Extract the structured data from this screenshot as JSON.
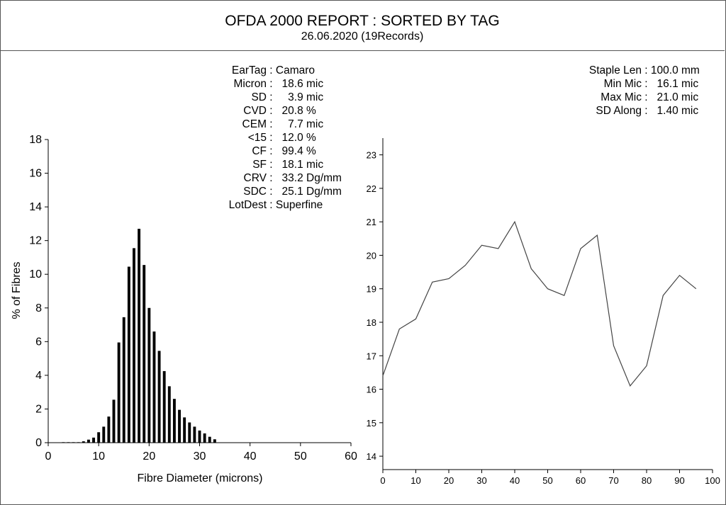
{
  "report": {
    "title": "OFDA 2000 REPORT : SORTED BY TAG",
    "subtitle": "26.06.2020 (19Records)"
  },
  "stats_left": [
    {
      "label": "EarTag",
      "value": "Camaro"
    },
    {
      "label": "Micron",
      "value": "  18.6 mic"
    },
    {
      "label": "SD",
      "value": "    3.9 mic"
    },
    {
      "label": "CVD",
      "value": "  20.8 %"
    },
    {
      "label": "CEM",
      "value": "    7.7 mic"
    },
    {
      "label": "<15",
      "value": "  12.0 %"
    },
    {
      "label": "CF",
      "value": "  99.4 %"
    },
    {
      "label": "SF",
      "value": "  18.1 mic"
    },
    {
      "label": "CRV",
      "value": "  33.2 Dg/mm"
    },
    {
      "label": "SDC",
      "value": "  25.1 Dg/mm"
    },
    {
      "label": "LotDest",
      "value": "Superfine"
    }
  ],
  "stats_right": [
    {
      "label": "Staple Len",
      "value": "100.0 mm"
    },
    {
      "label": "Min Mic",
      "value": "  16.1 mic"
    },
    {
      "label": "Max Mic",
      "value": "  21.0 mic"
    },
    {
      "label": "SD Along",
      "value": "  1.40 mic"
    }
  ],
  "chart_data": [
    {
      "type": "bar",
      "title": "",
      "xlabel": "Fibre Diameter (microns)",
      "ylabel": "% of Fibres",
      "xlim": [
        0,
        60
      ],
      "ylim": [
        0,
        18
      ],
      "x_ticks": [
        0,
        10,
        20,
        30,
        40,
        50,
        60
      ],
      "y_ticks": [
        0,
        2,
        4,
        6,
        8,
        10,
        12,
        14,
        16,
        18
      ],
      "x": [
        3,
        4,
        5,
        6,
        7,
        8,
        9,
        10,
        11,
        12,
        13,
        14,
        15,
        16,
        17,
        18,
        19,
        20,
        21,
        22,
        23,
        24,
        25,
        26,
        27,
        28,
        29,
        30,
        31,
        32,
        33
      ],
      "values": [
        0.03,
        0.03,
        0.03,
        0.03,
        0.08,
        0.18,
        0.3,
        0.62,
        0.95,
        1.55,
        2.55,
        5.95,
        7.45,
        10.45,
        11.55,
        12.7,
        10.55,
        8.0,
        6.6,
        5.45,
        4.25,
        3.35,
        2.6,
        1.95,
        1.5,
        1.2,
        0.95,
        0.72,
        0.55,
        0.35,
        0.2
      ]
    },
    {
      "type": "line",
      "title": "",
      "xlabel": "",
      "ylabel": "",
      "xlim": [
        0,
        100
      ],
      "ylim": [
        13.6,
        23.5
      ],
      "x_ticks": [
        0,
        10,
        20,
        30,
        40,
        50,
        60,
        70,
        80,
        90,
        100
      ],
      "y_ticks": [
        14,
        15,
        16,
        17,
        18,
        19,
        20,
        21,
        22,
        23
      ],
      "x": [
        0,
        5,
        10,
        15,
        20,
        25,
        30,
        35,
        40,
        45,
        50,
        55,
        60,
        65,
        70,
        75,
        80,
        85,
        90,
        95
      ],
      "values": [
        16.4,
        17.8,
        18.1,
        19.2,
        19.3,
        19.7,
        20.3,
        20.2,
        21.0,
        19.6,
        19.0,
        18.8,
        20.2,
        20.6,
        17.3,
        16.1,
        16.7,
        18.8,
        19.4,
        19.0
      ]
    }
  ]
}
